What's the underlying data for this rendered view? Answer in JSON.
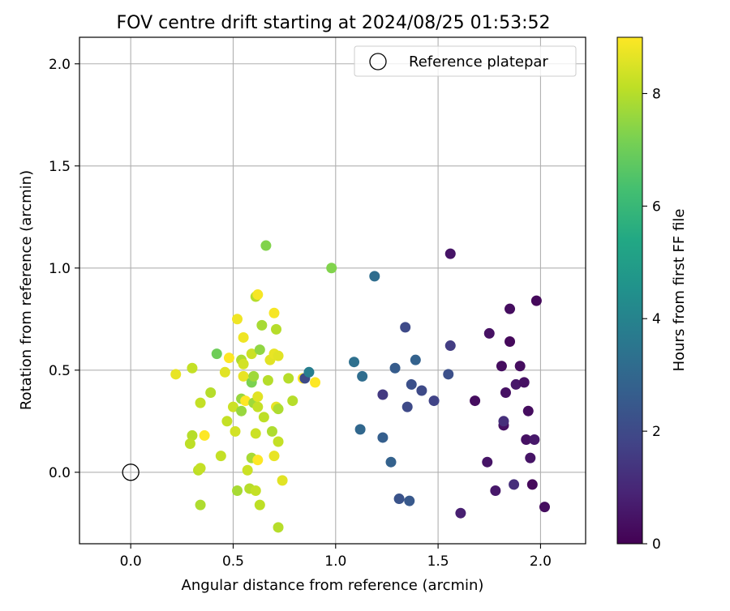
{
  "chart_data": {
    "type": "scatter",
    "title": "FOV centre drift starting at 2024/08/25 01:53:52",
    "xlabel": "Angular distance from reference (arcmin)",
    "ylabel": "Rotation from reference (arcmin)",
    "xlim": [
      -0.25,
      2.22
    ],
    "ylim": [
      -0.35,
      2.13
    ],
    "xticks": [
      0.0,
      0.5,
      1.0,
      1.5,
      2.0
    ],
    "yticks": [
      0.0,
      0.5,
      1.0,
      1.5,
      2.0
    ],
    "xtick_labels": [
      "0.0",
      "0.5",
      "1.0",
      "1.5",
      "2.0"
    ],
    "ytick_labels": [
      "0.0",
      "0.5",
      "1.0",
      "1.5",
      "2.0"
    ],
    "grid": true,
    "legend": {
      "placement": "upper right",
      "entries": [
        "Reference platepar"
      ]
    },
    "reference_point": {
      "x": 0.0,
      "y": 0.0
    },
    "colorbar": {
      "label": "Hours from first FF file",
      "range": [
        0,
        9
      ],
      "ticks": [
        0,
        2,
        4,
        6,
        8
      ],
      "tick_labels": [
        "0",
        "2",
        "4",
        "6",
        "8"
      ],
      "colormap": "viridis"
    },
    "series": [
      {
        "points": [
          {
            "x": 0.22,
            "y": 0.48,
            "c": 8.7
          },
          {
            "x": 0.3,
            "y": 0.51,
            "c": 8.2
          },
          {
            "x": 0.3,
            "y": 0.18,
            "c": 8.0
          },
          {
            "x": 0.29,
            "y": 0.14,
            "c": 8.1
          },
          {
            "x": 0.33,
            "y": 0.01,
            "c": 8.1
          },
          {
            "x": 0.34,
            "y": 0.02,
            "c": 8.2
          },
          {
            "x": 0.34,
            "y": 0.34,
            "c": 8.2
          },
          {
            "x": 0.34,
            "y": -0.16,
            "c": 7.9
          },
          {
            "x": 0.36,
            "y": 0.18,
            "c": 9.0
          },
          {
            "x": 0.39,
            "y": 0.39,
            "c": 8.0
          },
          {
            "x": 0.42,
            "y": 0.58,
            "c": 7.0
          },
          {
            "x": 0.44,
            "y": 0.08,
            "c": 8.2
          },
          {
            "x": 0.46,
            "y": 0.49,
            "c": 8.6
          },
          {
            "x": 0.47,
            "y": 0.25,
            "c": 8.2
          },
          {
            "x": 0.48,
            "y": 0.56,
            "c": 9.0
          },
          {
            "x": 0.5,
            "y": 0.32,
            "c": 8.3
          },
          {
            "x": 0.51,
            "y": 0.2,
            "c": 8.4
          },
          {
            "x": 0.52,
            "y": 0.75,
            "c": 8.8
          },
          {
            "x": 0.52,
            "y": -0.09,
            "c": 7.8
          },
          {
            "x": 0.54,
            "y": 0.36,
            "c": 7.6
          },
          {
            "x": 0.54,
            "y": 0.55,
            "c": 7.9
          },
          {
            "x": 0.55,
            "y": 0.66,
            "c": 8.8
          },
          {
            "x": 0.54,
            "y": 0.3,
            "c": 7.6
          },
          {
            "x": 0.55,
            "y": 0.47,
            "c": 8.7
          },
          {
            "x": 0.55,
            "y": 0.53,
            "c": 8.4
          },
          {
            "x": 0.56,
            "y": 0.35,
            "c": 9.0
          },
          {
            "x": 0.57,
            "y": 0.01,
            "c": 8.3
          },
          {
            "x": 0.58,
            "y": -0.08,
            "c": 8.0
          },
          {
            "x": 0.59,
            "y": 0.07,
            "c": 7.8
          },
          {
            "x": 0.59,
            "y": 0.44,
            "c": 7.2
          },
          {
            "x": 0.59,
            "y": 0.58,
            "c": 8.3
          },
          {
            "x": 0.6,
            "y": 0.34,
            "c": 7.7
          },
          {
            "x": 0.6,
            "y": 0.47,
            "c": 7.7
          },
          {
            "x": 0.61,
            "y": -0.09,
            "c": 8.2
          },
          {
            "x": 0.61,
            "y": 0.19,
            "c": 8.3
          },
          {
            "x": 0.61,
            "y": 0.86,
            "c": 8.0
          },
          {
            "x": 0.62,
            "y": 0.87,
            "c": 8.9
          },
          {
            "x": 0.62,
            "y": 0.06,
            "c": 9.0
          },
          {
            "x": 0.62,
            "y": 0.32,
            "c": 8.2
          },
          {
            "x": 0.62,
            "y": 0.37,
            "c": 8.6
          },
          {
            "x": 0.63,
            "y": 0.6,
            "c": 7.5
          },
          {
            "x": 0.63,
            "y": -0.16,
            "c": 8.1
          },
          {
            "x": 0.64,
            "y": 0.72,
            "c": 7.8
          },
          {
            "x": 0.65,
            "y": 0.27,
            "c": 8.1
          },
          {
            "x": 0.66,
            "y": 1.11,
            "c": 7.3
          },
          {
            "x": 0.67,
            "y": 0.45,
            "c": 8.0
          },
          {
            "x": 0.68,
            "y": 0.55,
            "c": 8.6
          },
          {
            "x": 0.69,
            "y": 0.2,
            "c": 7.9
          },
          {
            "x": 0.7,
            "y": 0.08,
            "c": 8.7
          },
          {
            "x": 0.7,
            "y": 0.78,
            "c": 8.9
          },
          {
            "x": 0.7,
            "y": 0.58,
            "c": 8.7
          },
          {
            "x": 0.71,
            "y": 0.7,
            "c": 8.0
          },
          {
            "x": 0.71,
            "y": 0.32,
            "c": 8.7
          },
          {
            "x": 0.72,
            "y": 0.31,
            "c": 7.9
          },
          {
            "x": 0.72,
            "y": 0.57,
            "c": 8.6
          },
          {
            "x": 0.72,
            "y": 0.15,
            "c": 8.2
          },
          {
            "x": 0.72,
            "y": -0.27,
            "c": 8.0
          },
          {
            "x": 0.74,
            "y": -0.04,
            "c": 8.6
          },
          {
            "x": 0.77,
            "y": 0.46,
            "c": 8.0
          },
          {
            "x": 0.79,
            "y": 0.35,
            "c": 8.0
          },
          {
            "x": 0.84,
            "y": 0.46,
            "c": 9.0
          },
          {
            "x": 0.85,
            "y": 0.46,
            "c": 2.0
          },
          {
            "x": 0.87,
            "y": 0.49,
            "c": 3.8
          },
          {
            "x": 0.9,
            "y": 0.44,
            "c": 9.0
          },
          {
            "x": 0.98,
            "y": 1.0,
            "c": 7.3
          },
          {
            "x": 1.09,
            "y": 0.54,
            "c": 3.3
          },
          {
            "x": 1.12,
            "y": 0.21,
            "c": 3.0
          },
          {
            "x": 1.13,
            "y": 0.47,
            "c": 3.2
          },
          {
            "x": 1.19,
            "y": 0.96,
            "c": 3.2
          },
          {
            "x": 1.23,
            "y": 0.38,
            "c": 1.5
          },
          {
            "x": 1.23,
            "y": 0.17,
            "c": 2.7
          },
          {
            "x": 1.27,
            "y": 0.05,
            "c": 2.8
          },
          {
            "x": 1.29,
            "y": 0.51,
            "c": 2.6
          },
          {
            "x": 1.31,
            "y": -0.13,
            "c": 2.3
          },
          {
            "x": 1.34,
            "y": 0.71,
            "c": 2.0
          },
          {
            "x": 1.35,
            "y": 0.32,
            "c": 2.0
          },
          {
            "x": 1.36,
            "y": -0.14,
            "c": 2.5
          },
          {
            "x": 1.37,
            "y": 0.43,
            "c": 2.2
          },
          {
            "x": 1.39,
            "y": 0.55,
            "c": 2.8
          },
          {
            "x": 1.42,
            "y": 0.4,
            "c": 2.0
          },
          {
            "x": 1.48,
            "y": 0.35,
            "c": 1.8
          },
          {
            "x": 1.55,
            "y": 0.48,
            "c": 2.2
          },
          {
            "x": 1.56,
            "y": 0.62,
            "c": 1.6
          },
          {
            "x": 1.56,
            "y": 1.07,
            "c": 0.5
          },
          {
            "x": 1.61,
            "y": -0.2,
            "c": 0.8
          },
          {
            "x": 1.68,
            "y": 0.35,
            "c": 0.3
          },
          {
            "x": 1.74,
            "y": 0.05,
            "c": 0.5
          },
          {
            "x": 1.75,
            "y": 0.68,
            "c": 0.4
          },
          {
            "x": 1.78,
            "y": -0.09,
            "c": 0.6
          },
          {
            "x": 1.81,
            "y": 0.52,
            "c": 0.3
          },
          {
            "x": 1.82,
            "y": 0.23,
            "c": 0.4
          },
          {
            "x": 1.82,
            "y": 0.25,
            "c": 1.2
          },
          {
            "x": 1.83,
            "y": 0.39,
            "c": 0.4
          },
          {
            "x": 1.85,
            "y": 0.8,
            "c": 0.3
          },
          {
            "x": 1.85,
            "y": 0.64,
            "c": 0.2
          },
          {
            "x": 1.87,
            "y": -0.06,
            "c": 1.2
          },
          {
            "x": 1.88,
            "y": 0.43,
            "c": 0.6
          },
          {
            "x": 1.9,
            "y": 0.52,
            "c": 0.3
          },
          {
            "x": 1.92,
            "y": 0.44,
            "c": 0.4
          },
          {
            "x": 1.93,
            "y": 0.16,
            "c": 0.4
          },
          {
            "x": 1.94,
            "y": 0.3,
            "c": 0.3
          },
          {
            "x": 1.95,
            "y": 0.07,
            "c": 0.5
          },
          {
            "x": 1.96,
            "y": -0.06,
            "c": 0.2
          },
          {
            "x": 1.97,
            "y": 0.16,
            "c": 0.6
          },
          {
            "x": 1.98,
            "y": 0.84,
            "c": 0.2
          },
          {
            "x": 2.02,
            "y": -0.17,
            "c": 0.3
          }
        ]
      }
    ]
  }
}
